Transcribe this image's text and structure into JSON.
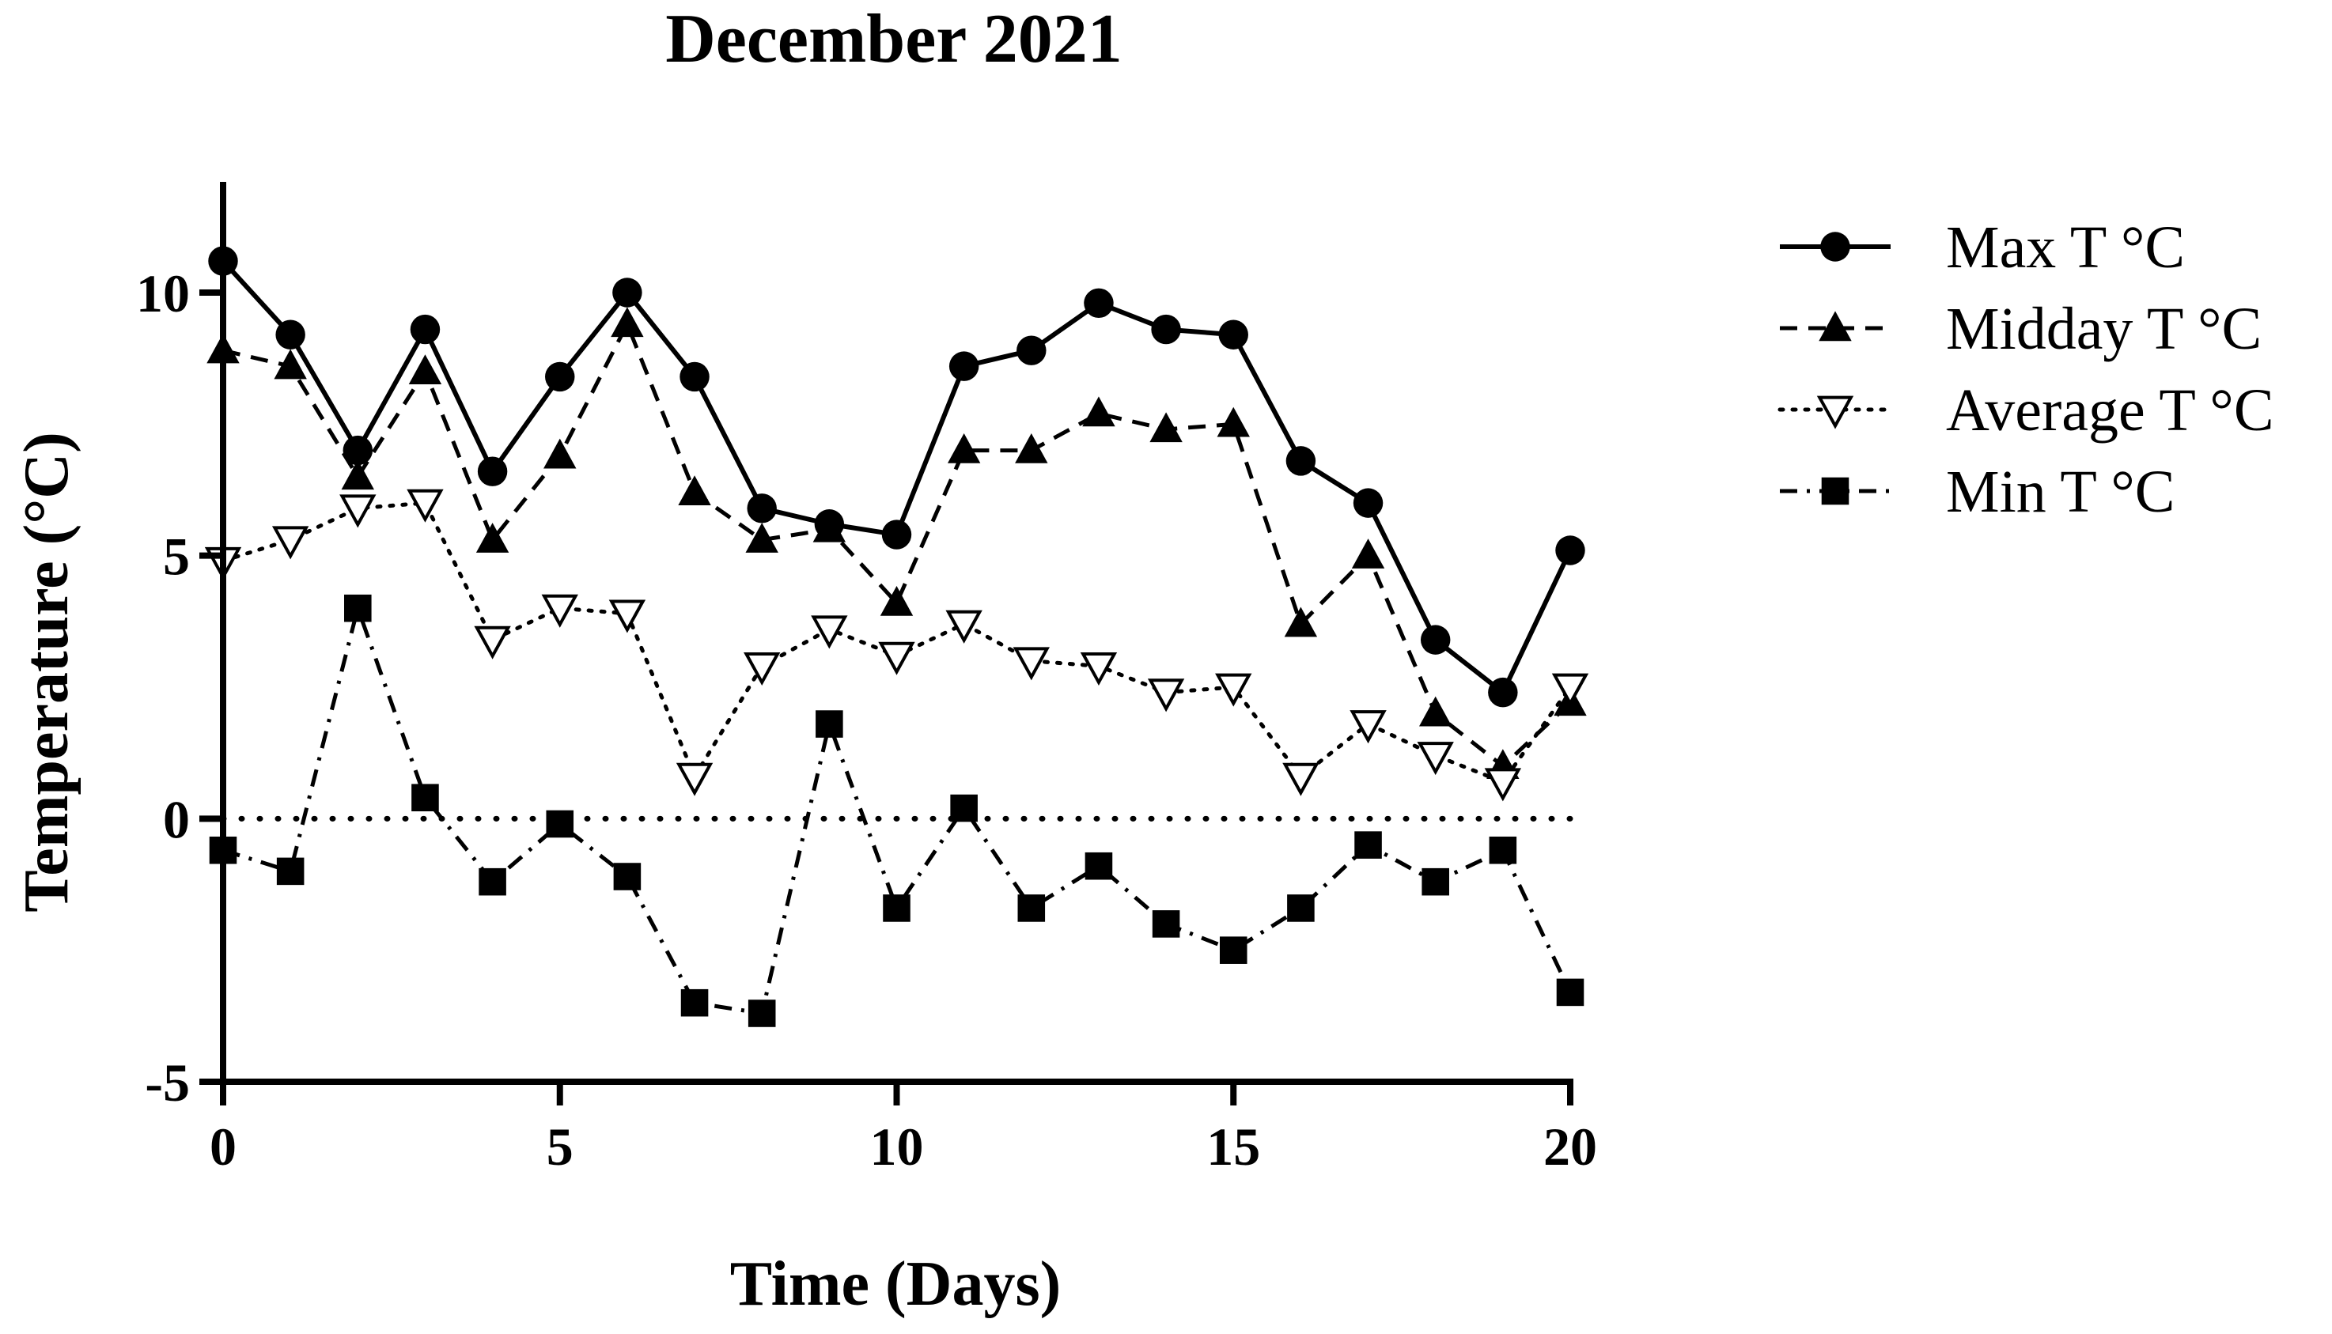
{
  "chart_data": {
    "type": "line",
    "title": "December 2021",
    "xlabel": "Time (Days)",
    "ylabel": "Temperature (°C)",
    "xlim": [
      0,
      20
    ],
    "ylim": [
      -5,
      12
    ],
    "xticks": [
      0,
      5,
      10,
      15,
      20
    ],
    "yticks": [
      -5,
      0,
      5,
      10
    ],
    "x_tick_labels": [
      "0",
      "5",
      "10",
      "15",
      "20"
    ],
    "y_tick_labels": [
      "-5",
      "0",
      "5",
      "10"
    ],
    "x": [
      0,
      1,
      2,
      3,
      4,
      5,
      6,
      7,
      8,
      9,
      10,
      11,
      12,
      13,
      14,
      15,
      16,
      17,
      18,
      19,
      20
    ],
    "reference_line": {
      "y": 0,
      "style": "dotted"
    },
    "legend_position": "right",
    "series": [
      {
        "name": "Max T °C",
        "marker": "circle",
        "line_style": "solid",
        "values": [
          10.6,
          9.2,
          7.0,
          9.3,
          6.6,
          8.4,
          10.0,
          8.4,
          5.9,
          5.6,
          5.4,
          8.6,
          8.9,
          9.8,
          9.3,
          9.2,
          6.8,
          6.0,
          3.4,
          2.4,
          5.1
        ]
      },
      {
        "name": "Midday T °C",
        "marker": "triangle-up",
        "line_style": "dashed",
        "values": [
          8.9,
          8.6,
          6.5,
          8.5,
          5.3,
          6.9,
          9.4,
          6.2,
          5.3,
          5.5,
          4.1,
          7.0,
          7.0,
          7.7,
          7.4,
          7.5,
          3.7,
          5.0,
          2.0,
          1.0,
          2.2
        ]
      },
      {
        "name": "Average T °C",
        "marker": "triangle-down-open",
        "line_style": "dotted",
        "values": [
          4.9,
          5.3,
          5.9,
          6.0,
          3.4,
          4.0,
          3.9,
          0.8,
          2.9,
          3.6,
          3.1,
          3.7,
          3.0,
          2.9,
          2.4,
          2.5,
          0.8,
          1.8,
          1.2,
          0.7,
          2.5
        ]
      },
      {
        "name": "Min T °C",
        "marker": "square",
        "line_style": "dash-dot",
        "values": [
          -0.6,
          -1.0,
          4.0,
          0.4,
          -1.2,
          -0.1,
          -1.1,
          -3.5,
          -3.7,
          1.8,
          -1.7,
          0.2,
          -1.7,
          -0.9,
          -2.0,
          -2.5,
          -1.7,
          -0.5,
          -1.2,
          -0.6,
          -3.3
        ]
      }
    ]
  }
}
